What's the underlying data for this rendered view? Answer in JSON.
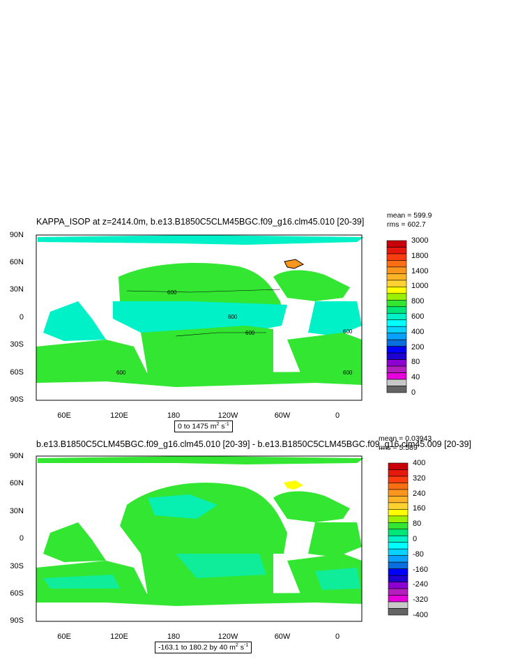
{
  "panel1": {
    "title": "KAPPA_ISOP at z=2414.0m, b.e13.B1850C5CLM45BGC.f09_g16.clm45.010 [20-39]",
    "mean": "mean = 599.9",
    "rms": "rms = 602.7",
    "range_note": "0 to 1475 m",
    "unit_exp": "2",
    "unit_suffix": " s",
    "unit_neg": "-1",
    "contour_labels": [
      "600",
      "600",
      "600",
      "600",
      "600",
      "600"
    ],
    "colorbar": {
      "labels": [
        "3000",
        "1800",
        "1400",
        "1000",
        "800",
        "600",
        "400",
        "200",
        "80",
        "40",
        "0"
      ],
      "colors": [
        "#c8000a",
        "#e6170c",
        "#fa3c0e",
        "#fa6e14",
        "#fa961e",
        "#ffb428",
        "#ffd232",
        "#ffff00",
        "#9bf000",
        "#32e632",
        "#00e678",
        "#00f0c8",
        "#00ffff",
        "#0ad2ff",
        "#0aa0ff",
        "#0a6edc",
        "#0000ff",
        "#1e00d2",
        "#8c00d2",
        "#b41ebe",
        "#e600dc",
        "#c8c8c8",
        "#646464"
      ]
    }
  },
  "panel2": {
    "title": "b.e13.B1850C5CLM45BGC.f09_g16.clm45.010 [20-39] - b.e13.B1850C5CLM45BGC.f09_g16.clm45.009 [20-39]",
    "mean": "mean = 0.03943",
    "rms": "rms = 5.589",
    "range_note": "-163.1 to 180.2 by 40 m",
    "unit_exp": "2",
    "unit_suffix": " s",
    "unit_neg": "-1",
    "colorbar": {
      "labels": [
        "400",
        "320",
        "240",
        "160",
        "80",
        "0",
        "-80",
        "-160",
        "-240",
        "-320",
        "-400"
      ],
      "colors": [
        "#c8000a",
        "#e6170c",
        "#fa3c0e",
        "#fa6e14",
        "#fa961e",
        "#ffb428",
        "#ffd232",
        "#ffff00",
        "#9bf000",
        "#32e632",
        "#00e678",
        "#00f0c8",
        "#00ffff",
        "#0ad2ff",
        "#0aa0ff",
        "#0a6edc",
        "#0000ff",
        "#1e00d2",
        "#8c00d2",
        "#b41ebe",
        "#e600dc",
        "#c8c8c8",
        "#646464"
      ]
    }
  },
  "axes": {
    "lat_labels": [
      "90N",
      "60N",
      "30N",
      "0",
      "30S",
      "60S",
      "90S"
    ],
    "lon_labels": [
      "60E",
      "120E",
      "180",
      "120W",
      "60W",
      "0"
    ]
  },
  "colors": {
    "ocean_main": "#32e632",
    "ocean_alt": "#00f0c8",
    "ocean_hi": "#fa961e",
    "land": "#ffffff"
  }
}
